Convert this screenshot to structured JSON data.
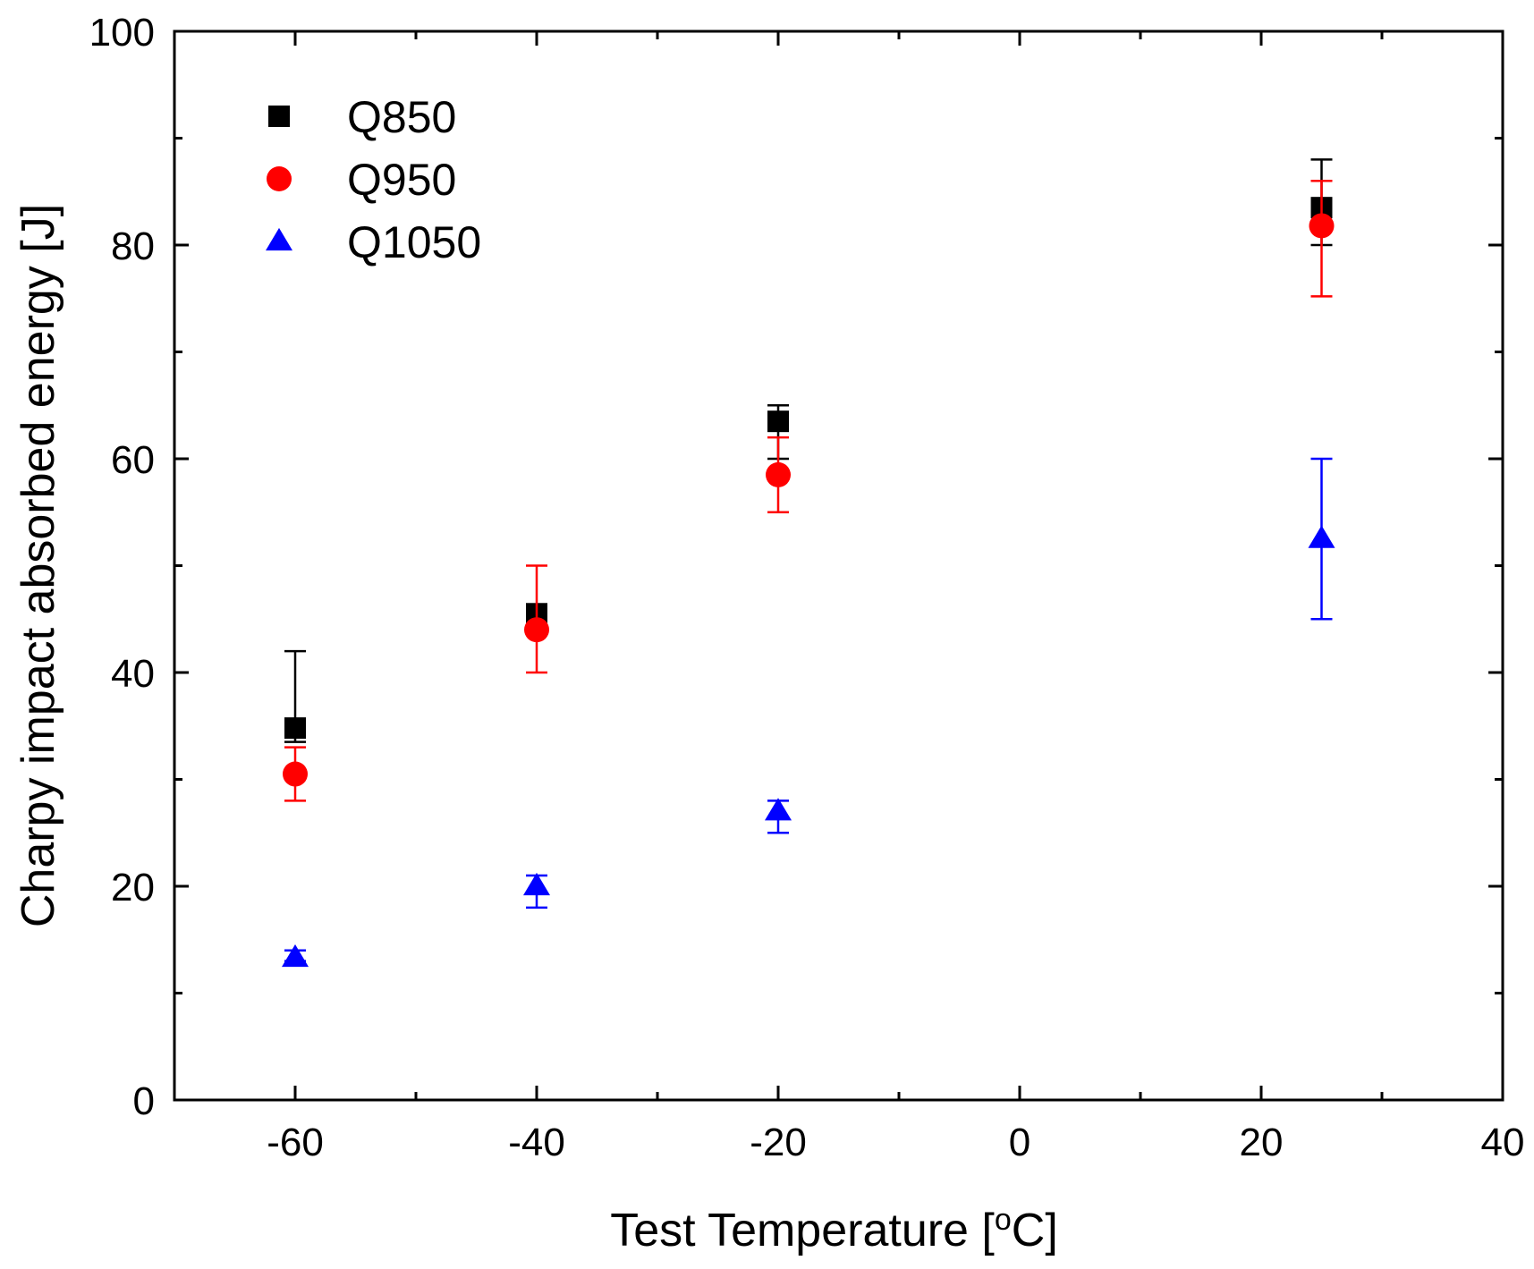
{
  "chart_data": {
    "type": "scatter",
    "title": "",
    "xlabel": "Test Temperature [",
    "xlabel_unit_sup": "o",
    "xlabel_unit_tail": "C]",
    "ylabel": "Charpy impact absorbed energy [J]",
    "xlim": [
      -70,
      40
    ],
    "ylim": [
      0,
      100
    ],
    "x_ticks": [
      -60,
      -40,
      -20,
      0,
      20,
      40
    ],
    "x_tick_labels": [
      "-60",
      "-40",
      "-20",
      "0",
      "20",
      "40"
    ],
    "x_minor_ticks": [
      -50,
      -30,
      -10,
      10,
      30
    ],
    "y_ticks": [
      0,
      20,
      40,
      60,
      80,
      100
    ],
    "y_tick_labels": [
      "0",
      "20",
      "40",
      "60",
      "80",
      "100"
    ],
    "y_minor_ticks": [
      10,
      30,
      50,
      70,
      90
    ],
    "grid": false,
    "legend_position": "top-left",
    "series": [
      {
        "name": "Q850",
        "marker": "square",
        "color": "#000000",
        "x": [
          -60,
          -40,
          -20,
          25
        ],
        "y": [
          34.8,
          45.5,
          63.5,
          83.5
        ],
        "err_low": [
          33.5,
          45.0,
          60.0,
          80.0
        ],
        "err_high": [
          42.0,
          46.0,
          65.0,
          88.0
        ]
      },
      {
        "name": "Q950",
        "marker": "circle",
        "color": "#ff0000",
        "x": [
          -60,
          -40,
          -20,
          25
        ],
        "y": [
          30.5,
          44.0,
          58.5,
          81.8
        ],
        "err_low": [
          28.0,
          40.0,
          55.0,
          75.2
        ],
        "err_high": [
          33.0,
          50.0,
          62.0,
          86.0
        ]
      },
      {
        "name": "Q1050",
        "marker": "triangle",
        "color": "#0000ff",
        "x": [
          -60,
          -40,
          -20,
          25
        ],
        "y": [
          13.3,
          20.0,
          27.0,
          52.5
        ],
        "err_low": [
          13.0,
          18.0,
          25.0,
          45.0
        ],
        "err_high": [
          14.0,
          21.0,
          28.0,
          60.0
        ]
      }
    ]
  }
}
